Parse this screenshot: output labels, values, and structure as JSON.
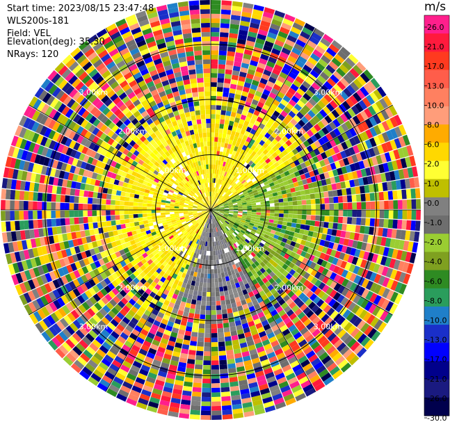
{
  "info": {
    "start_time": "Start time: 2023/08/15 23:47:48",
    "instrument": "WLS200s-181",
    "field": "Field: VEL",
    "elevation": "Elevation(deg): 35.30",
    "nrays": "NRays: 120"
  },
  "chart_data": {
    "type": "heatmap",
    "projection": "polar-ppi",
    "field": "VEL",
    "units": "m/s",
    "elevation_deg": 35.3,
    "n_rays": 120,
    "max_range_km": 3.8,
    "range_rings_km": [
      1.0,
      2.0,
      3.0
    ],
    "ring_labels": [
      "1.00km",
      "2.00km",
      "3.00km"
    ],
    "colorbar": {
      "title": "m/s",
      "ticks": [
        "26.0",
        "21.0",
        "17.0",
        "13.0",
        "10.0",
        "8.0",
        "6.0",
        "2.0",
        "1.0",
        "0.0",
        "-1.0",
        "-2.0",
        "-4.0",
        "-6.0",
        "-8.0",
        "-10.0",
        "-13.0",
        "-17.0",
        "-21.0",
        "-26.0",
        "-30.0"
      ],
      "colors": [
        "#ff1f8c",
        "#ff1a3d",
        "#ff3a1f",
        "#ff5d4a",
        "#ff8060",
        "#ff9d7a",
        "#ffab00",
        "#ffd800",
        "#ffff33",
        "#bfbf00",
        "#808080",
        "#6e6e6e",
        "#9acd32",
        "#7fa020",
        "#2e8b22",
        "#2a9d5c",
        "#1f7fc9",
        "#1a2fc9",
        "#0000ff",
        "#00008b",
        "#1a1a80",
        "#00004d"
      ]
    },
    "near_field_pattern": [
      {
        "az_from": 0,
        "az_to": 60,
        "dominant": "yellow"
      },
      {
        "az_from": 60,
        "az_to": 150,
        "dominant": "green"
      },
      {
        "az_from": 150,
        "az_to": 200,
        "dominant": "grey"
      },
      {
        "az_from": 200,
        "az_to": 360,
        "dominant": "yellow"
      }
    ]
  }
}
